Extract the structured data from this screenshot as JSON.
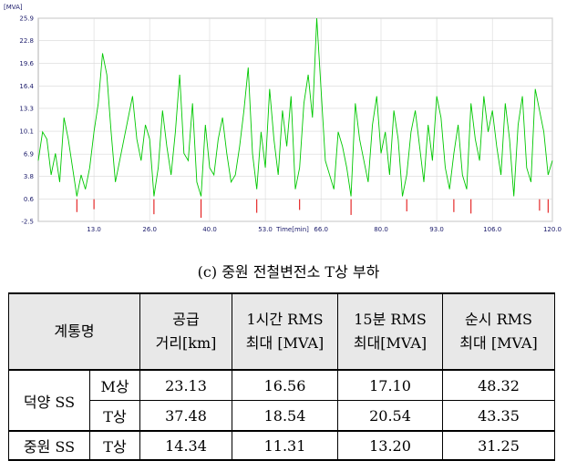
{
  "chart_data": {
    "type": "line",
    "ylabel": "[MVA]",
    "xlabel": "Time[min]",
    "y_ticks": [
      "25.9",
      "22.8",
      "19.6",
      "16.4",
      "13.3",
      "10.1",
      "6.9",
      "3.8",
      "0.6",
      "-2.5"
    ],
    "x_ticks": [
      "13.0",
      "26.0",
      "40.0",
      "53.0",
      "66.0",
      "80.0",
      "93.0",
      "106.0",
      "120.0"
    ],
    "ylim": [
      -2.5,
      25.9
    ],
    "xlim": [
      0,
      120
    ],
    "grid": true,
    "series": [
      {
        "color": "#00c800",
        "x": [
          0,
          1,
          2,
          3,
          4,
          5,
          6,
          7,
          8,
          9,
          10,
          11,
          12,
          13,
          14,
          15,
          16,
          17,
          18,
          19,
          20,
          21,
          22,
          23,
          24,
          25,
          26,
          27,
          28,
          29,
          30,
          31,
          32,
          33,
          34,
          35,
          36,
          37,
          38,
          39,
          40,
          41,
          42,
          43,
          44,
          45,
          46,
          47,
          48,
          49,
          50,
          51,
          52,
          53,
          54,
          55,
          56,
          57,
          58,
          59,
          60,
          61,
          62,
          63,
          64,
          65,
          66,
          67,
          68,
          69,
          70,
          71,
          72,
          73,
          74,
          75,
          76,
          77,
          78,
          79,
          80,
          81,
          82,
          83,
          84,
          85,
          86,
          87,
          88,
          89,
          90,
          91,
          92,
          93,
          94,
          95,
          96,
          97,
          98,
          99,
          100,
          101,
          102,
          103,
          104,
          105,
          106,
          107,
          108,
          109,
          110,
          111,
          112,
          113,
          114,
          115,
          116,
          117,
          118,
          119,
          120
        ],
        "y": [
          6,
          10,
          9,
          4,
          7,
          3,
          12,
          9,
          5,
          1,
          4,
          2,
          5,
          10,
          14,
          21,
          18,
          10,
          3,
          6,
          9,
          12,
          15,
          9,
          6,
          11,
          9,
          1,
          5,
          13,
          8,
          4,
          10,
          18,
          7,
          6,
          14,
          3,
          1,
          11,
          5,
          4,
          9,
          12,
          7,
          3,
          4,
          8,
          13,
          19,
          7,
          2,
          10,
          5,
          16,
          9,
          4,
          13,
          8,
          15,
          2,
          5,
          14,
          18,
          12,
          25.9,
          16,
          6,
          4,
          2,
          10,
          8,
          5,
          1,
          14,
          9,
          6,
          3,
          11,
          15,
          7,
          10,
          4,
          13,
          9,
          1,
          4,
          10,
          13,
          8,
          3,
          11,
          6,
          15,
          12,
          5,
          2,
          7,
          11,
          4,
          2,
          14,
          9,
          6,
          15,
          10,
          13,
          8,
          4,
          14,
          9,
          1,
          11,
          15,
          5,
          3,
          16,
          13,
          10,
          4,
          6
        ]
      },
      {
        "color": "#e00000",
        "x": [
          9,
          13,
          27,
          38,
          51,
          61,
          73,
          86,
          97,
          101,
          117,
          119
        ],
        "y": [
          -1.2,
          -0.8,
          -1.5,
          -2.0,
          -1.3,
          -0.9,
          -1.6,
          -1.1,
          -1.2,
          -1.4,
          -1.0,
          -1.3
        ]
      }
    ]
  },
  "caption": "(c) 중원 전철변전소 T상 부하",
  "table": {
    "header": {
      "col1": "계통명",
      "col2": [
        "공급",
        "거리[km]"
      ],
      "col3": [
        "1시간 RMS",
        "최대 [MVA]"
      ],
      "col4": [
        "15분 RMS",
        "최대[MVA]"
      ],
      "col5": [
        "순시 RMS",
        "최대 [MVA]"
      ]
    },
    "rows": [
      {
        "group": "덕양 SS",
        "phase": "M상",
        "distance": "23.13",
        "rms_1h": "16.56",
        "rms_15m": "17.10",
        "rms_inst": "48.32"
      },
      {
        "group": "",
        "phase": "T상",
        "distance": "37.48",
        "rms_1h": "18.54",
        "rms_15m": "20.54",
        "rms_inst": "43.35"
      },
      {
        "group": "중원 SS",
        "phase": "T상",
        "distance": "14.34",
        "rms_1h": "11.31",
        "rms_15m": "13.20",
        "rms_inst": "31.25"
      }
    ]
  }
}
